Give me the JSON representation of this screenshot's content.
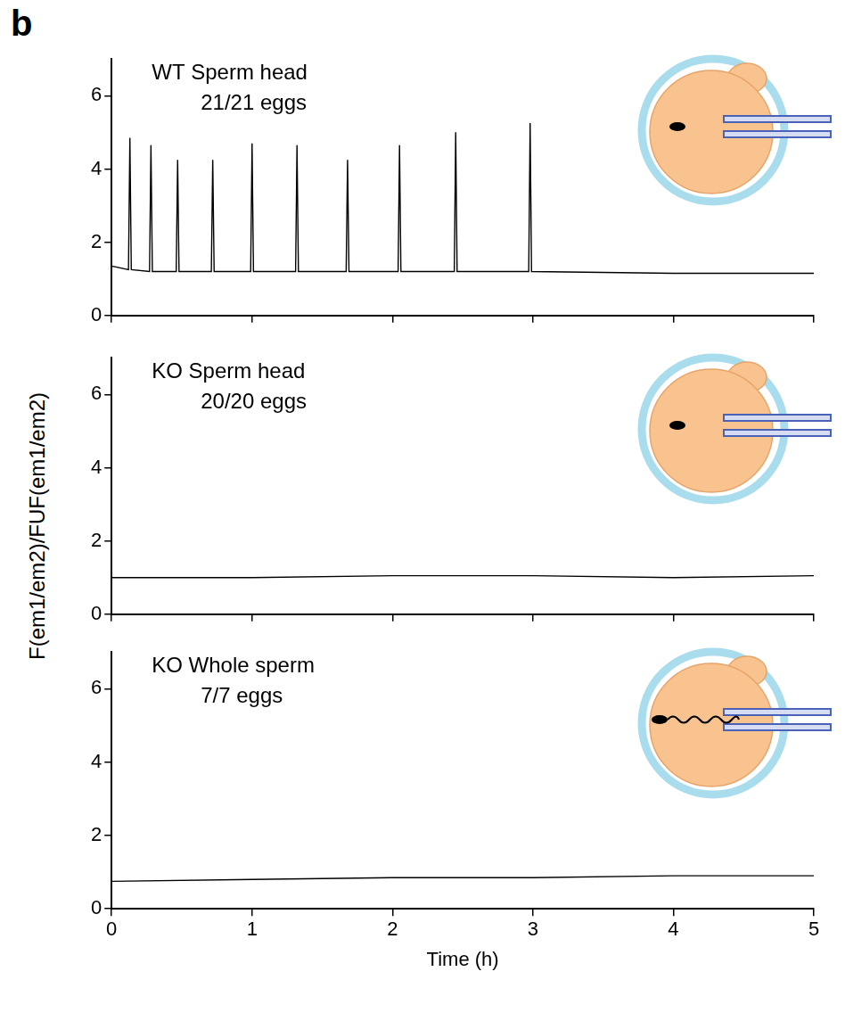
{
  "panel_label": "b",
  "y_label": "F(em1/em2)/FUF(em1/em2)",
  "chart_data": [
    {
      "type": "line",
      "title": "WT Sperm head",
      "subtitle": "21/21 eggs",
      "x": [
        0,
        0.12,
        0.13,
        0.14,
        0.27,
        0.28,
        0.29,
        0.46,
        0.47,
        0.48,
        0.71,
        0.72,
        0.73,
        0.99,
        1.0,
        1.01,
        1.31,
        1.32,
        1.33,
        1.67,
        1.68,
        1.69,
        2.04,
        2.05,
        2.06,
        2.44,
        2.45,
        2.46,
        2.97,
        2.98,
        2.99,
        4,
        5
      ],
      "values": [
        1.35,
        1.25,
        4.85,
        1.25,
        1.2,
        4.65,
        1.2,
        1.2,
        4.25,
        1.2,
        1.2,
        4.25,
        1.2,
        1.2,
        4.7,
        1.2,
        1.2,
        4.65,
        1.2,
        1.2,
        4.25,
        1.2,
        1.2,
        4.65,
        1.2,
        1.2,
        5.0,
        1.2,
        1.2,
        5.25,
        1.2,
        1.15,
        1.15
      ],
      "color": "#000000",
      "xlim": [
        0,
        5
      ],
      "xticks": [
        0,
        1,
        2,
        3,
        4,
        5
      ],
      "ylim": [
        0,
        7
      ],
      "yticks": [
        0,
        2,
        4,
        6
      ],
      "grid": false,
      "tick_labels": "y"
    },
    {
      "type": "line",
      "title": "KO Sperm head",
      "subtitle": "20/20 eggs",
      "x": [
        0,
        1,
        2,
        3,
        4,
        5
      ],
      "values": [
        1.0,
        1.0,
        1.05,
        1.05,
        1.0,
        1.05
      ],
      "color": "#000000",
      "xlim": [
        0,
        5
      ],
      "xticks": [
        0,
        1,
        2,
        3,
        4,
        5
      ],
      "ylim": [
        0,
        7
      ],
      "yticks": [
        0,
        2,
        4,
        6
      ],
      "grid": false,
      "tick_labels": "y"
    },
    {
      "type": "line",
      "title": "KO Whole sperm",
      "subtitle": "7/7 eggs",
      "x": [
        0,
        1,
        2,
        3,
        4,
        5
      ],
      "values": [
        0.75,
        0.8,
        0.85,
        0.85,
        0.9,
        0.9
      ],
      "color": "#000000",
      "x_label": "Time (h)",
      "xlim": [
        0,
        5
      ],
      "xticks": [
        0,
        1,
        2,
        3,
        4,
        5
      ],
      "ylim": [
        0,
        7
      ],
      "yticks": [
        0,
        2,
        4,
        6
      ],
      "grid": false
    }
  ]
}
